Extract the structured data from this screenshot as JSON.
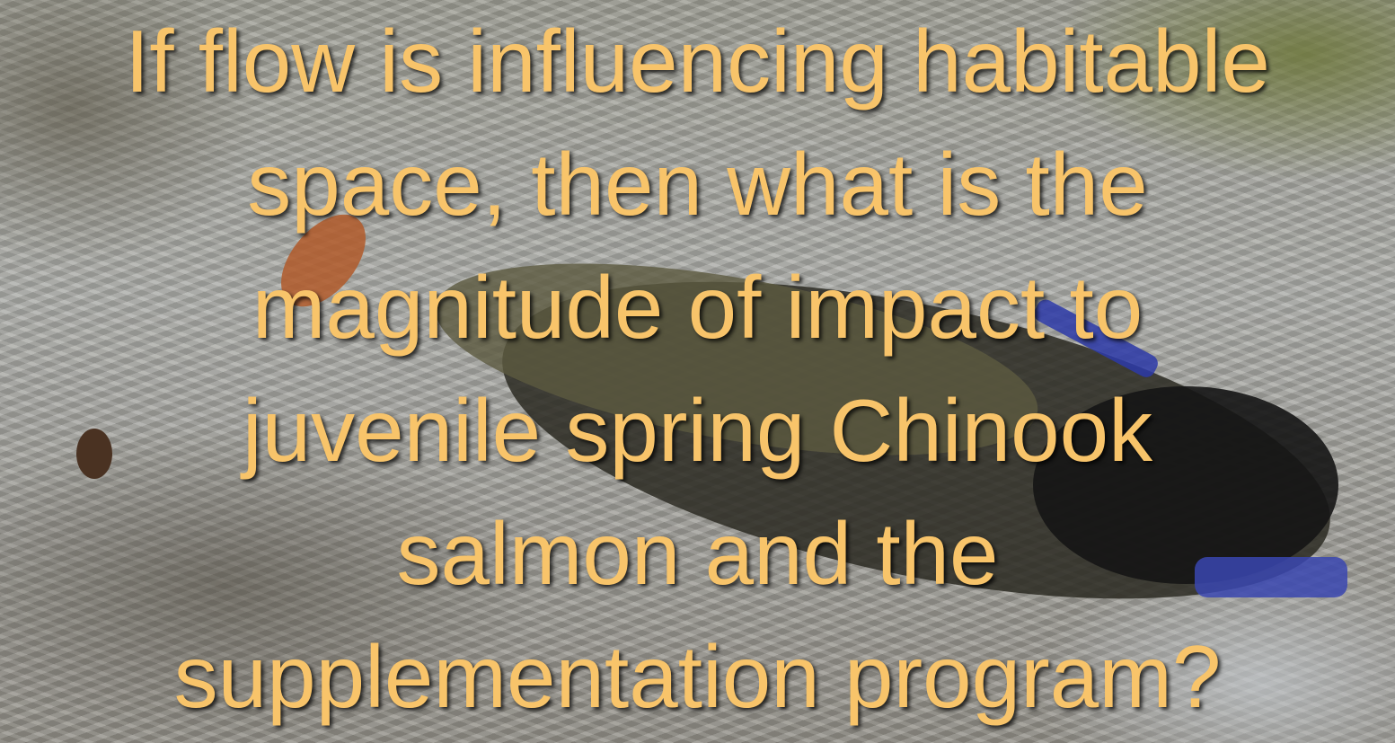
{
  "slide": {
    "lines": [
      "If flow is influencing habitable",
      "space, then what is the",
      "magnitude of impact to",
      "juvenile spring Chinook",
      "salmon and the",
      "supplementation program?"
    ]
  }
}
